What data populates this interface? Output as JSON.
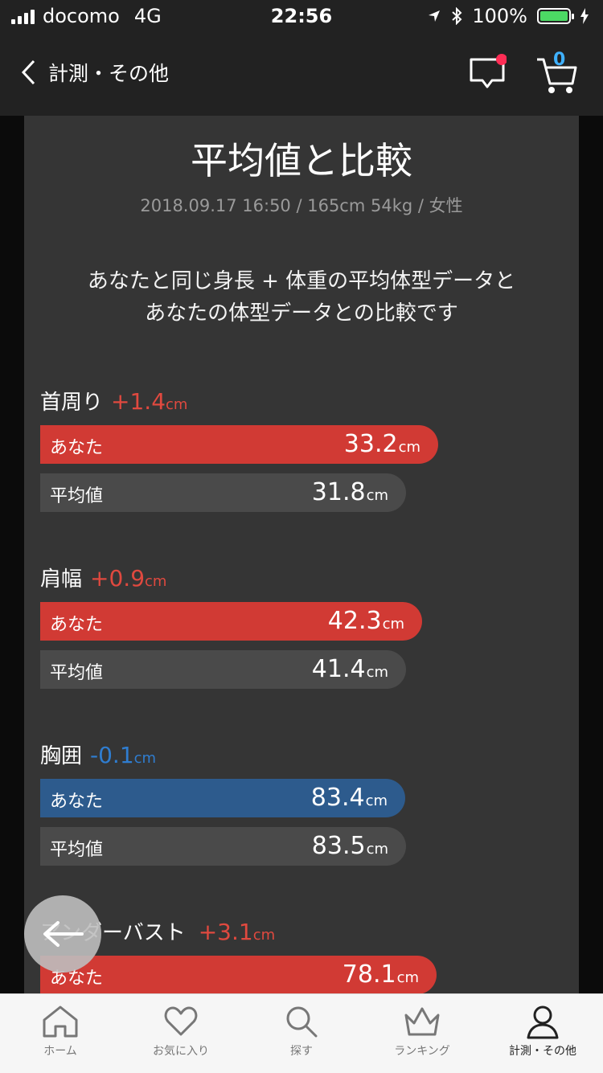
{
  "status_bar": {
    "carrier": "docomo",
    "network": "4G",
    "time": "22:56",
    "battery": "100%"
  },
  "nav": {
    "back_label": "計測・その他",
    "cart_count": "0"
  },
  "page": {
    "title": "平均値と比較",
    "meta": "2018.09.17 16:50 / 165cm 54kg / 女性",
    "description_line1": "あなたと同じ身長 + 体重の平均体型データと",
    "description_line2": "あなたの体型データとの比較です"
  },
  "labels": {
    "you": "あなた",
    "average": "平均値",
    "unit": "cm"
  },
  "measurements": [
    {
      "name": "首周り",
      "diff": "+1.4",
      "diff_sign": "positive",
      "you": "33.2",
      "avg": "31.8"
    },
    {
      "name": "肩幅",
      "diff": "+0.9",
      "diff_sign": "positive",
      "you": "42.3",
      "avg": "41.4"
    },
    {
      "name": "胸囲",
      "diff": "-0.1",
      "diff_sign": "negative",
      "you": "83.4",
      "avg": "83.5"
    },
    {
      "name": "アンダーバスト",
      "diff": "+3.1",
      "diff_sign": "positive",
      "you": "78.1",
      "avg": ""
    }
  ],
  "tabs": [
    {
      "label": "ホーム",
      "icon": "home-icon"
    },
    {
      "label": "お気に入り",
      "icon": "heart-icon"
    },
    {
      "label": "探す",
      "icon": "search-icon"
    },
    {
      "label": "ランキング",
      "icon": "crown-icon"
    },
    {
      "label": "計測・その他",
      "icon": "person-icon",
      "active": true
    }
  ],
  "colors": {
    "positive": "#e0493f",
    "negative": "#2f7dd0",
    "bar_you_red": "#d13a34",
    "bar_you_blue": "#2d5b8d",
    "bar_avg": "#4a4a4a"
  }
}
